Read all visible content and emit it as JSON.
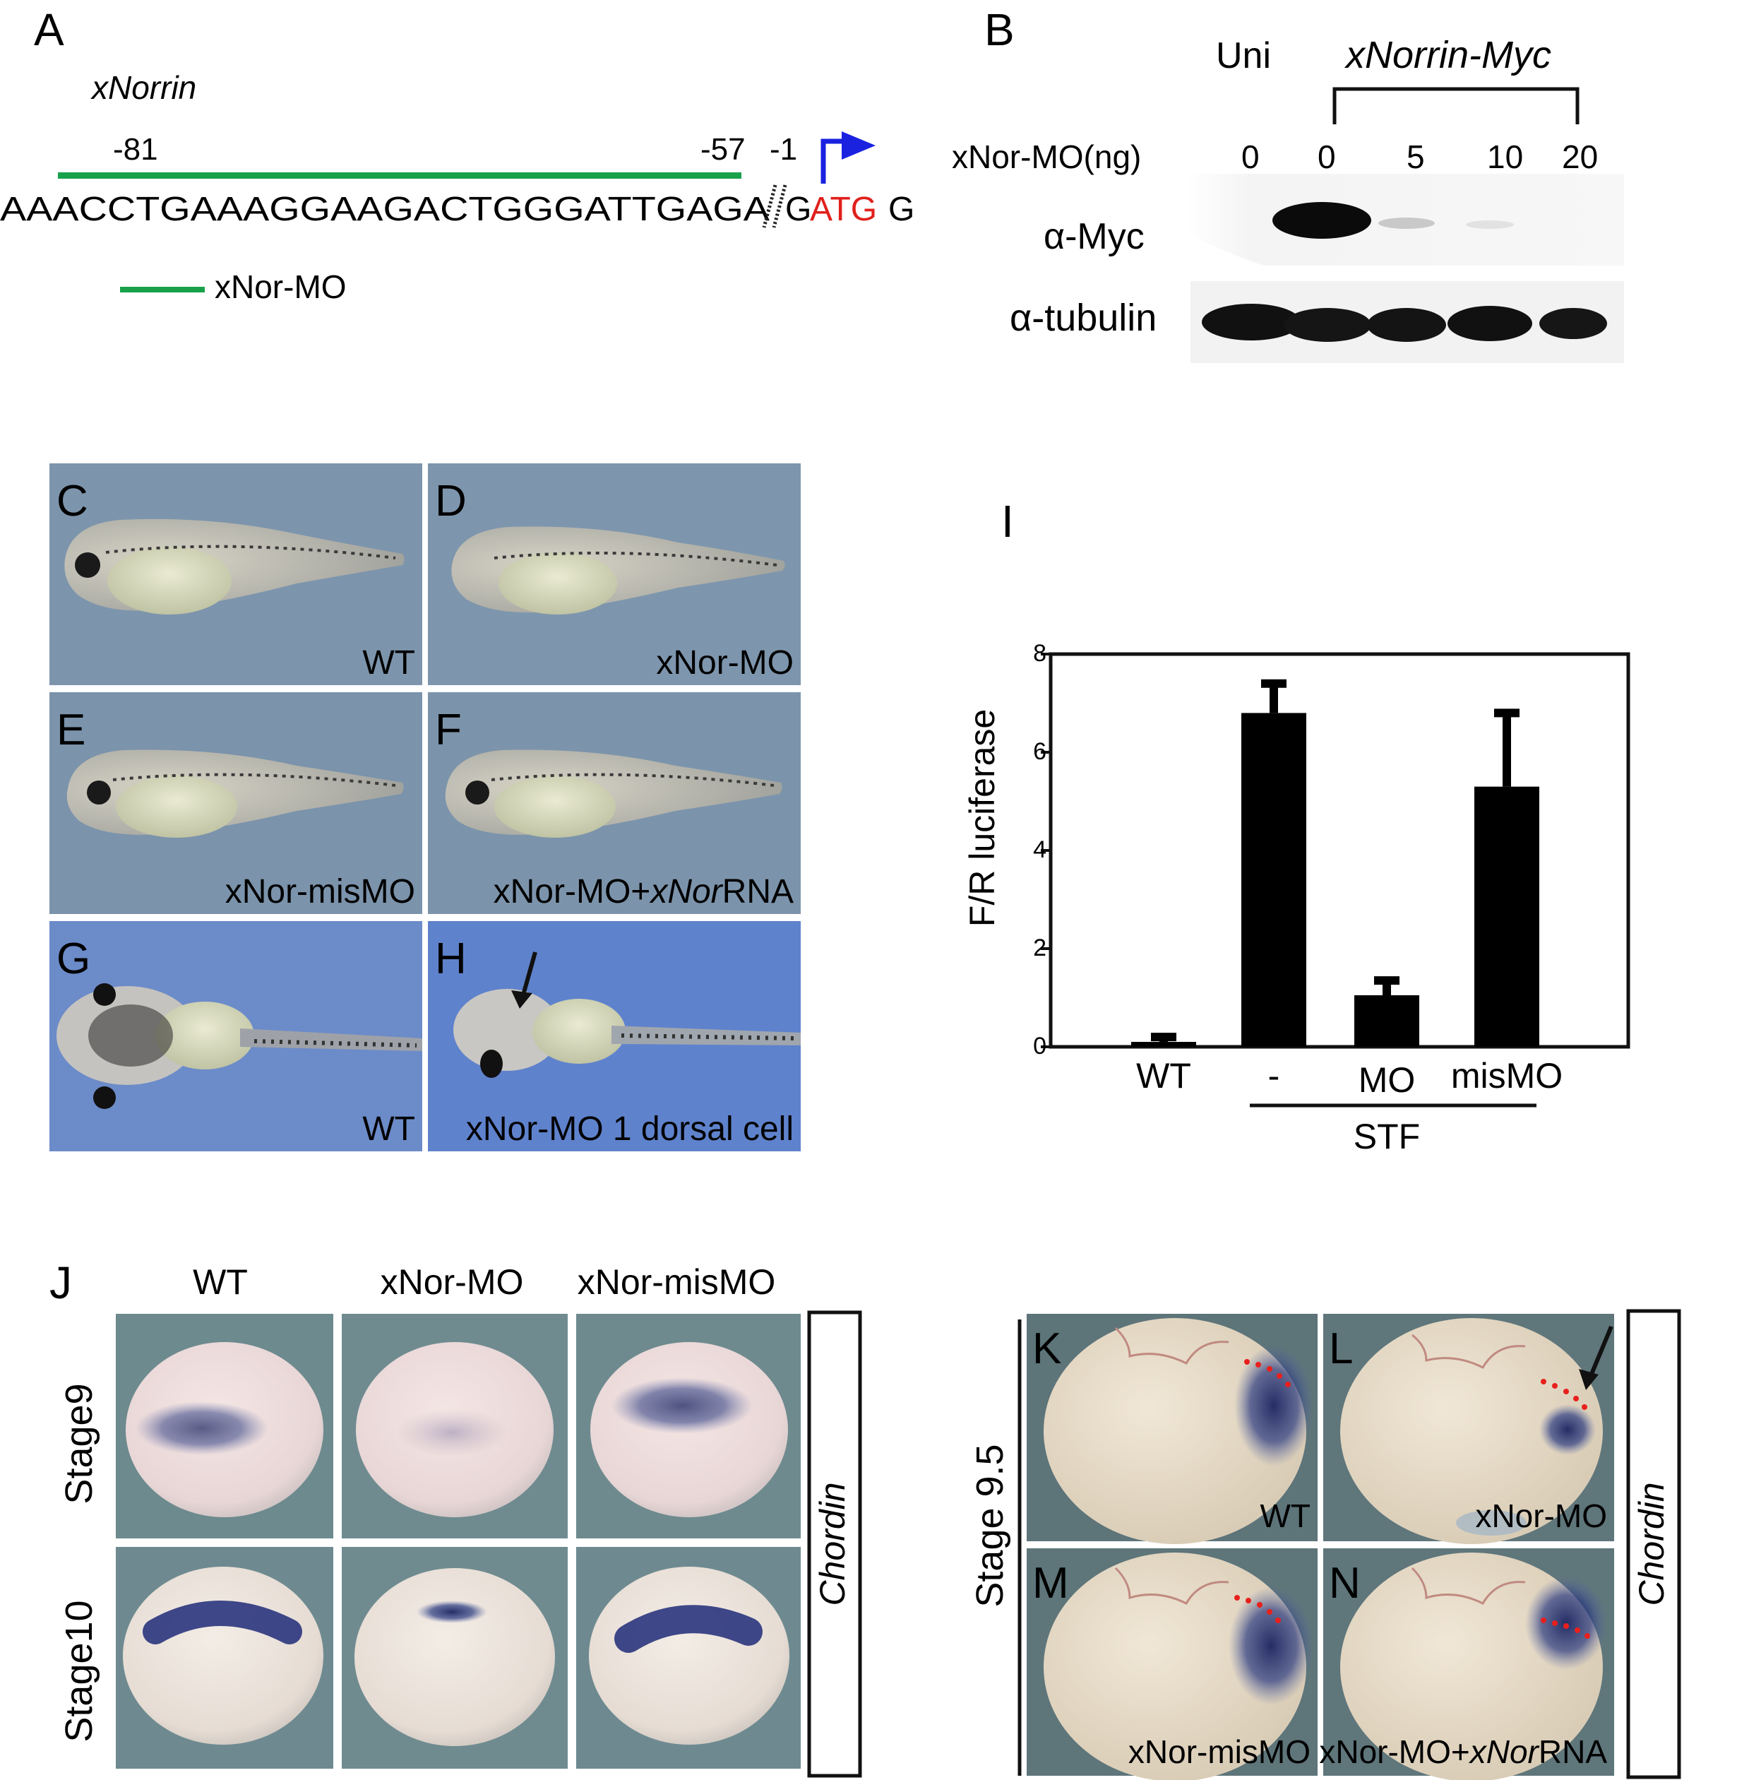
{
  "panels": {
    "A": {
      "letter": "A",
      "gene": "xNorrin",
      "pos_left": "-81",
      "pos_right": "-57",
      "pos_minus1": "-1",
      "sequence_main": "AAACCTGAAAGGAAGACTGGGATTGAGA",
      "sequence_tail": "G",
      "start_codon": "ATG",
      "sequence_end": "G",
      "mo_label": "xNor-MO",
      "colors": {
        "mo_bar": "#18a14a",
        "start_codon": "#e0201c",
        "arrow": "#1a22e0"
      }
    },
    "B": {
      "letter": "B",
      "uninjected_label": "Uni",
      "construct_label": "xNorrin-Myc",
      "row_label": "xNor-MO(ng)",
      "doses": [
        "0",
        "0",
        "5",
        "10",
        "20"
      ],
      "blot_myc_label": "α-Myc",
      "blot_tubulin_label": "α-tubulin"
    },
    "embryos": {
      "C": {
        "letter": "C",
        "caption": "WT"
      },
      "D": {
        "letter": "D",
        "caption": "xNor-MO"
      },
      "E": {
        "letter": "E",
        "caption": "xNor-misMO"
      },
      "F": {
        "letter": "F",
        "caption_prefix": "xNor-MO+",
        "caption_italic": "xNor",
        "caption_suffix": "RNA"
      },
      "G": {
        "letter": "G",
        "caption": "WT"
      },
      "H": {
        "letter": "H",
        "caption": "xNor-MO 1 dorsal cell"
      }
    },
    "I": {
      "letter": "I"
    },
    "J": {
      "letter": "J",
      "columns": [
        "WT",
        "xNor-MO",
        "xNor-misMO"
      ],
      "rows": [
        "Stage9",
        "Stage10"
      ],
      "gene_label": "Chordin"
    },
    "KN": {
      "stage_label": "Stage 9.5",
      "gene_label": "Chordin",
      "K": {
        "letter": "K",
        "caption": "WT"
      },
      "L": {
        "letter": "L",
        "caption": "xNor-MO"
      },
      "M": {
        "letter": "M",
        "caption": "xNor-misMO"
      },
      "N": {
        "letter": "N",
        "caption_prefix": "xNor-MO+",
        "caption_italic": "xNor",
        "caption_suffix": "RNA"
      }
    }
  },
  "chart_data": {
    "type": "bar",
    "categories": [
      "WT",
      "-",
      "MO",
      "misMO"
    ],
    "values": [
      0.1,
      6.8,
      1.05,
      5.3
    ],
    "errors": [
      0.1,
      0.6,
      0.3,
      1.5
    ],
    "ylabel": "F/R luciferase",
    "ylim": [
      0,
      8
    ],
    "yticks": [
      "0",
      "2",
      "4",
      "6",
      "8"
    ],
    "group_label": "STF",
    "grid": false
  }
}
